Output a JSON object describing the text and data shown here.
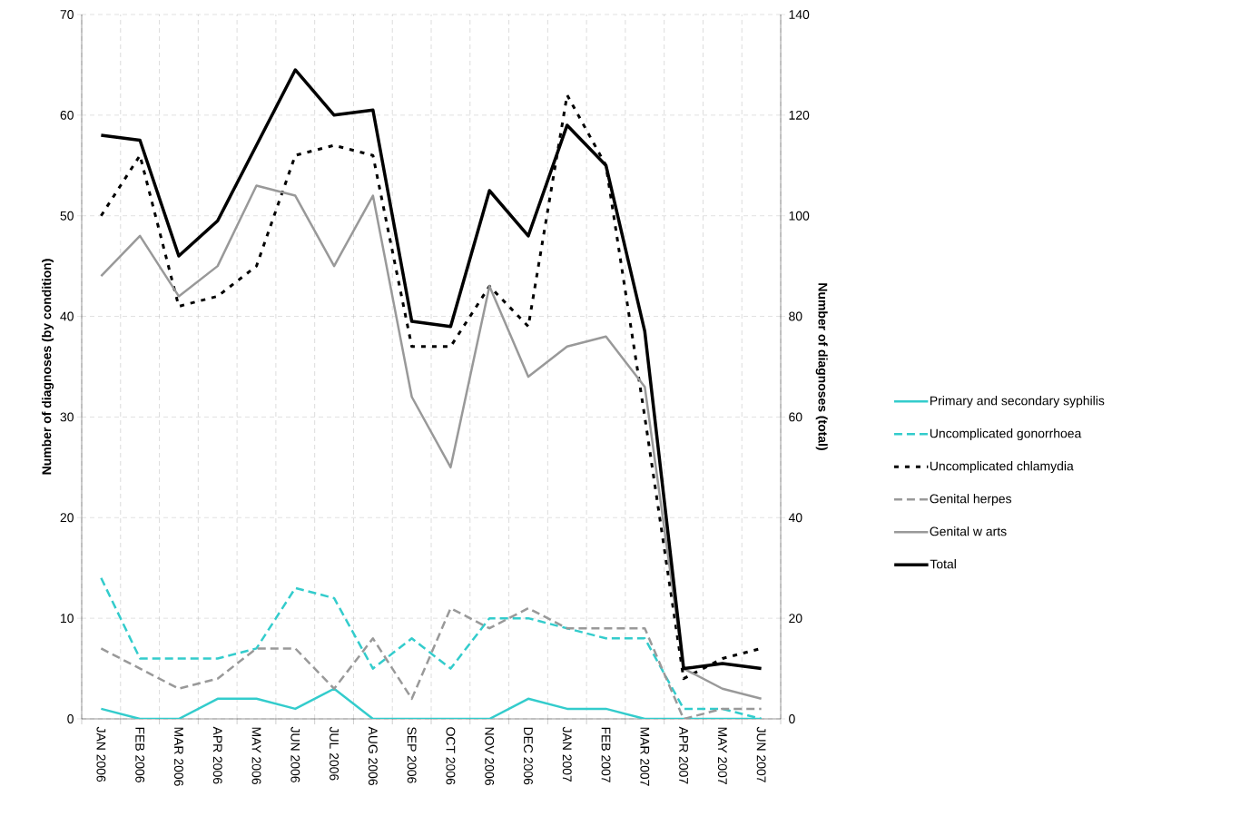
{
  "chart_data": {
    "type": "line",
    "ylabel": "Number of diagnoses (by condition)",
    "y2label": "Number of diagnoses (total)",
    "categories": [
      "JAN 2006",
      "FEB 2006",
      "MAR 2006",
      "APR 2006",
      "MAY 2006",
      "JUN 2006",
      "JUL 2006",
      "AUG 2006",
      "SEP 2006",
      "OCT 2006",
      "NOV 2006",
      "DEC 2006",
      "JAN 2007",
      "FEB 2007",
      "MAR 2007",
      "APR 2007",
      "MAY 2007",
      "JUN 2007"
    ],
    "ylim": [
      0,
      70
    ],
    "yticks": [
      0,
      10,
      20,
      30,
      40,
      50,
      60,
      70
    ],
    "y2lim": [
      0,
      140
    ],
    "y2ticks": [
      0,
      20,
      40,
      60,
      80,
      100,
      120,
      140
    ],
    "grid": true,
    "legend": "right",
    "marker": "none",
    "series": [
      {
        "name": "Primary and secondary syphilis",
        "color": "#33cccc",
        "line_style": "solid",
        "values": [
          1,
          0,
          0,
          2,
          2,
          1,
          3,
          0,
          0,
          0,
          0,
          2,
          1,
          1,
          0,
          0,
          0,
          0
        ]
      },
      {
        "name": "Uncomplicated gonorrhoea",
        "color": "#33cccc",
        "line_style": "dashed",
        "values": [
          14,
          6,
          6,
          6,
          7,
          13,
          12,
          5,
          8,
          5,
          10,
          10,
          9,
          8,
          8,
          1,
          1,
          0
        ]
      },
      {
        "name": "Uncomplicated chlamydia",
        "color": "#000000",
        "line_style": "dotted",
        "values": [
          50,
          56,
          41,
          42,
          45,
          56,
          57,
          56,
          37,
          37,
          43,
          39,
          62,
          55,
          30,
          4,
          6,
          7
        ]
      },
      {
        "name": "Genital herpes",
        "color": "#999999",
        "line_style": "dashed",
        "values": [
          7,
          5,
          3,
          4,
          7,
          7,
          3,
          8,
          2,
          11,
          9,
          11,
          9,
          9,
          9,
          0,
          1,
          1
        ]
      },
      {
        "name": "Genital w arts",
        "color": "#999999",
        "line_style": "solid",
        "values": [
          44,
          48,
          42,
          45,
          53,
          52,
          45,
          52,
          32,
          25,
          43,
          34,
          37,
          38,
          33,
          5,
          3,
          2
        ]
      },
      {
        "name": "Total",
        "color": "#000000",
        "line_style": "solid",
        "axis": "y2",
        "values": [
          116,
          115,
          92,
          99,
          114,
          129,
          120,
          121,
          79,
          78,
          105,
          96,
          118,
          110,
          77,
          10,
          11,
          10
        ]
      }
    ]
  }
}
